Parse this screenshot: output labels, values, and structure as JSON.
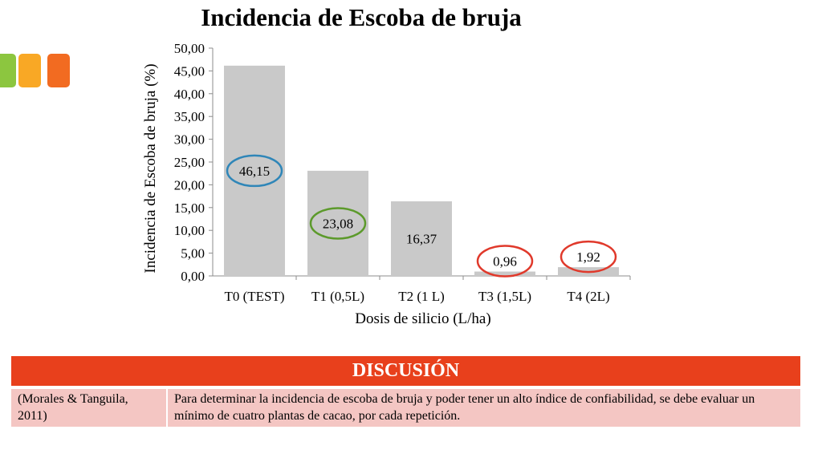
{
  "slide": {
    "accent_colors": [
      "#8cc63f",
      "#f9a825",
      "#f26b21"
    ],
    "header_color": "#e8401c",
    "row_color": "#f4c6c3"
  },
  "chart_data": {
    "type": "bar",
    "title": "Incidencia de Escoba de bruja",
    "xlabel": "Dosis de silicio (L/ha)",
    "ylabel": "Incidencia de Escoba de bruja (%)",
    "categories": [
      "T0 (TEST)",
      "T1 (0,5L)",
      "T2 (1 L)",
      "T3 (1,5L)",
      "T4 (2L)"
    ],
    "values": [
      46.15,
      23.08,
      16.37,
      0.96,
      1.92
    ],
    "data_labels": [
      "46,15",
      "23,08",
      "16,37",
      "0,96",
      "1,92"
    ],
    "ylim": [
      0,
      50
    ],
    "yticks": [
      "0,00",
      "5,00",
      "10,00",
      "15,00",
      "20,00",
      "25,00",
      "30,00",
      "35,00",
      "40,00",
      "45,00",
      "50,00"
    ],
    "bar_color": "#c9c9c9",
    "highlight_circles": [
      {
        "category": "T0 (TEST)",
        "color": "#2f86b8"
      },
      {
        "category": "T1 (0,5L)",
        "color": "#5c9a2b"
      },
      {
        "category": "T3 (1,5L)",
        "color": "#e0392b"
      },
      {
        "category": "T4 (2L)",
        "color": "#e0392b"
      }
    ],
    "grid": false,
    "legend": "none"
  },
  "discussion": {
    "heading": "DISCUSIÓN",
    "reference": "(Morales & Tanguila, 2011)",
    "text": "Para determinar la incidencia de escoba de bruja y poder tener un alto índice de confiabilidad, se debe evaluar un mínimo de cuatro plantas de cacao, por cada repetición."
  }
}
